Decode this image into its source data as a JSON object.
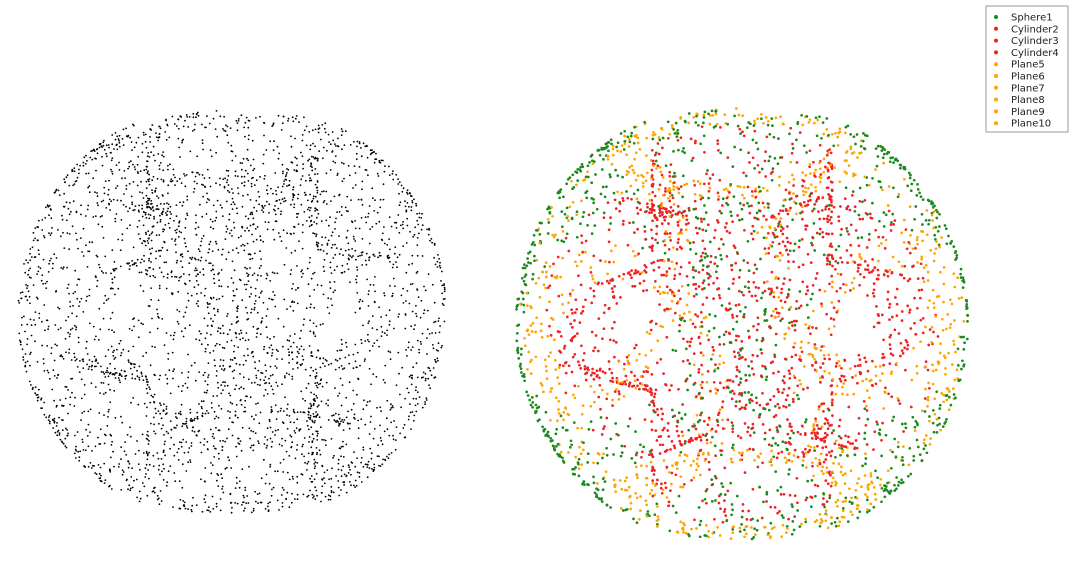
{
  "chart_data": [
    {
      "type": "scatter",
      "view": "raw-point-cloud",
      "title": "",
      "grid": false,
      "axes_visible": false,
      "series": [
        {
          "color": "#000000",
          "primitive": "mixed"
        }
      ]
    },
    {
      "type": "scatter",
      "view": "segmented-point-cloud",
      "title": "",
      "grid": false,
      "axes_visible": false,
      "legend_position": "top-right",
      "series": [
        {
          "name": "Sphere1",
          "color": "#1a8a1a",
          "primitive": "sphere"
        },
        {
          "name": "Cylinder2",
          "color": "#ee2222",
          "primitive": "cylinder",
          "axis": "y"
        },
        {
          "name": "Cylinder3",
          "color": "#ee2222",
          "primitive": "cylinder",
          "axis": "x"
        },
        {
          "name": "Cylinder4",
          "color": "#ee2222",
          "primitive": "cylinder",
          "axis": "z"
        },
        {
          "name": "Plane5",
          "color": "#ffa500",
          "primitive": "plane",
          "normal": "+x"
        },
        {
          "name": "Plane6",
          "color": "#ffa500",
          "primitive": "plane",
          "normal": "-x"
        },
        {
          "name": "Plane7",
          "color": "#ffa500",
          "primitive": "plane",
          "normal": "+y"
        },
        {
          "name": "Plane8",
          "color": "#ffa500",
          "primitive": "plane",
          "normal": "-y"
        },
        {
          "name": "Plane9",
          "color": "#ffa500",
          "primitive": "plane",
          "normal": "+z"
        },
        {
          "name": "Plane10",
          "color": "#ffa500",
          "primitive": "plane",
          "normal": "-z"
        }
      ]
    }
  ]
}
